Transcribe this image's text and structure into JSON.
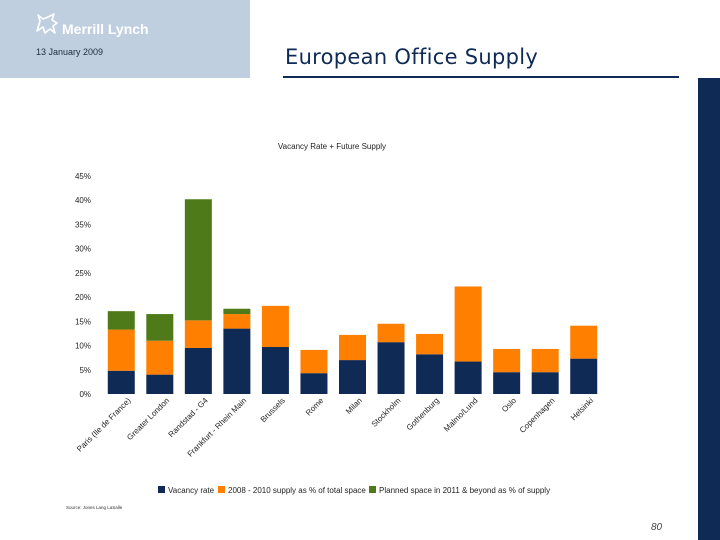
{
  "header": {
    "logo_text": "Merrill Lynch",
    "date": "13 January 2009"
  },
  "page_title": "European Office Supply",
  "page_number": "80",
  "source": "Source: Jones Lang LaSalle",
  "colors": {
    "vacancy": "#0e2a55",
    "supply_2008_2010": "#ff8000",
    "planned_2011": "#4e7a1a",
    "title_navy": "#0e2a55",
    "logo_panel": "#c0cfe0"
  },
  "chart_data": {
    "type": "bar",
    "stacked": true,
    "title": "Vacancy Rate + Future Supply",
    "categories": [
      "Paris (Ile de France)",
      "Greater London",
      "Randstad - G4",
      "Frankfurt - Rhein Main",
      "Brussels",
      "Rome",
      "Milan",
      "Stockholm",
      "Gothenburg",
      "Malmo/Lund",
      "Oslo",
      "Copenhagen",
      "Helsinki"
    ],
    "series": [
      {
        "name": "Vacancy rate",
        "values": [
          4.8,
          4.0,
          9.5,
          13.5,
          9.7,
          4.3,
          7.0,
          10.7,
          8.2,
          6.7,
          4.5,
          4.5,
          7.3
        ]
      },
      {
        "name": "2008 - 2010 supply as % of total space",
        "values": [
          8.5,
          7.0,
          5.7,
          3.0,
          8.5,
          4.8,
          5.2,
          3.8,
          4.2,
          15.5,
          4.8,
          4.8,
          6.8
        ]
      },
      {
        "name": "Planned space in 2011 & beyond as % of supply",
        "values": [
          3.8,
          5.5,
          25.0,
          1.1,
          0,
          0,
          0,
          0,
          0,
          0,
          0,
          0,
          0
        ]
      }
    ],
    "ylim": [
      0,
      45
    ],
    "yticks": [
      "0%",
      "5%",
      "10%",
      "15%",
      "20%",
      "25%",
      "30%",
      "35%",
      "40%",
      "45%"
    ],
    "grid": false,
    "legend_position": "bottom"
  }
}
